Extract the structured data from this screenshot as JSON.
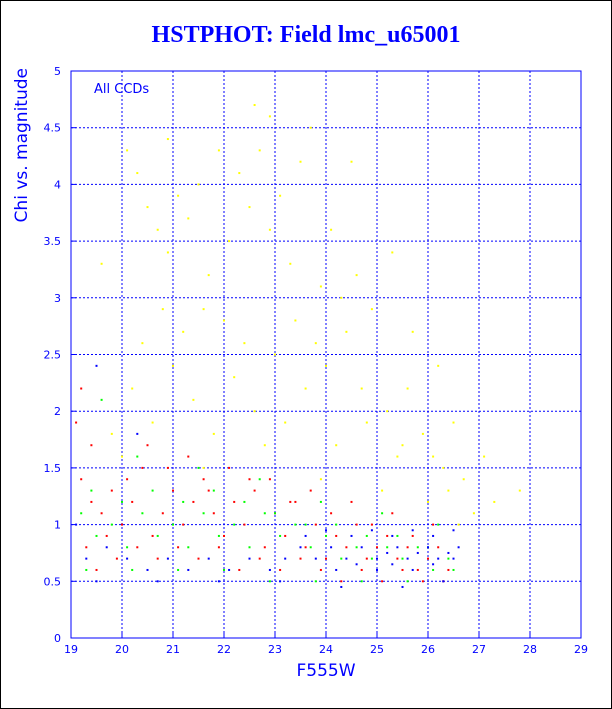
{
  "chart_data": {
    "type": "scatter",
    "title": "HSTPHOT: Field lmc_u65001",
    "xlabel": "F555W",
    "ylabel": "Chi vs. magnitude",
    "annotation": "All CCDs",
    "xlim": [
      19,
      29
    ],
    "ylim": [
      0,
      5
    ],
    "xticks": [
      "19",
      "20",
      "21",
      "22",
      "23",
      "24",
      "25",
      "26",
      "27",
      "28",
      "29"
    ],
    "yticks": [
      "0",
      "0.5",
      "1",
      "1.5",
      "2",
      "2.5",
      "3",
      "3.5",
      "4",
      "4.5",
      "5"
    ],
    "grid": true,
    "colors": {
      "text": "#0000ff",
      "grid": "#0000ff",
      "axes": "#0000ff"
    },
    "series": [
      {
        "color": "#ffff00",
        "points": [
          [
            19.6,
            3.3
          ],
          [
            20.1,
            4.3
          ],
          [
            20.3,
            4.1
          ],
          [
            20.5,
            3.8
          ],
          [
            20.7,
            3.6
          ],
          [
            20.9,
            3.4
          ],
          [
            21.1,
            3.9
          ],
          [
            21.3,
            3.7
          ],
          [
            21.5,
            4.0
          ],
          [
            21.7,
            3.2
          ],
          [
            21.9,
            4.3
          ],
          [
            22.1,
            3.5
          ],
          [
            22.3,
            4.1
          ],
          [
            22.5,
            3.8
          ],
          [
            22.7,
            4.3
          ],
          [
            22.9,
            3.6
          ],
          [
            23.1,
            3.9
          ],
          [
            23.3,
            3.3
          ],
          [
            23.5,
            4.2
          ],
          [
            23.7,
            4.5
          ],
          [
            23.9,
            3.1
          ],
          [
            24.1,
            3.6
          ],
          [
            24.3,
            3.0
          ],
          [
            24.6,
            3.2
          ],
          [
            24.9,
            2.9
          ],
          [
            25.3,
            3.4
          ],
          [
            25.7,
            2.7
          ],
          [
            26.2,
            2.4
          ],
          [
            22.0,
            2.8
          ],
          [
            22.4,
            2.6
          ],
          [
            21.6,
            2.9
          ],
          [
            23.4,
            2.8
          ],
          [
            20.4,
            2.6
          ],
          [
            20.8,
            2.9
          ],
          [
            21.2,
            2.7
          ],
          [
            23.8,
            2.6
          ],
          [
            24.4,
            2.7
          ],
          [
            25.6,
            2.2
          ],
          [
            26.5,
            1.9
          ],
          [
            27.1,
            1.6
          ],
          [
            27.8,
            1.3
          ],
          [
            21.0,
            2.4
          ],
          [
            22.2,
            2.3
          ],
          [
            23.0,
            2.5
          ],
          [
            24.0,
            2.4
          ],
          [
            24.7,
            2.2
          ],
          [
            25.2,
            2.0
          ],
          [
            25.9,
            1.8
          ],
          [
            26.3,
            1.5
          ],
          [
            20.2,
            2.2
          ],
          [
            21.4,
            2.1
          ],
          [
            22.6,
            2.0
          ],
          [
            23.6,
            2.2
          ],
          [
            24.8,
            1.9
          ],
          [
            25.5,
            1.7
          ],
          [
            26.1,
            1.6
          ],
          [
            26.7,
            1.4
          ],
          [
            27.3,
            1.2
          ],
          [
            20.6,
            1.9
          ],
          [
            21.8,
            1.8
          ],
          [
            22.8,
            1.7
          ],
          [
            23.2,
            1.9
          ],
          [
            24.2,
            1.7
          ],
          [
            25.4,
            1.6
          ],
          [
            26.4,
            1.3
          ],
          [
            26.9,
            1.1
          ],
          [
            19.8,
            1.8
          ],
          [
            20.0,
            1.6
          ],
          [
            21.6,
            1.5
          ],
          [
            23.9,
            1.4
          ],
          [
            25.1,
            1.3
          ],
          [
            26.0,
            1.2
          ],
          [
            26.6,
            1.0
          ],
          [
            22.9,
            4.6
          ],
          [
            24.5,
            4.2
          ],
          [
            20.9,
            4.4
          ],
          [
            22.6,
            4.7
          ]
        ]
      },
      {
        "color": "#ff0000",
        "points": [
          [
            19.1,
            1.9
          ],
          [
            19.2,
            1.4
          ],
          [
            19.4,
            1.2
          ],
          [
            19.6,
            1.1
          ],
          [
            19.8,
            1.3
          ],
          [
            20.0,
            1.0
          ],
          [
            20.2,
            1.2
          ],
          [
            20.4,
            1.5
          ],
          [
            20.6,
            0.9
          ],
          [
            20.8,
            1.1
          ],
          [
            21.0,
            1.3
          ],
          [
            21.2,
            1.0
          ],
          [
            21.4,
            1.2
          ],
          [
            21.6,
            1.4
          ],
          [
            21.8,
            1.1
          ],
          [
            22.0,
            0.9
          ],
          [
            22.2,
            1.2
          ],
          [
            22.4,
            1.0
          ],
          [
            22.6,
            1.3
          ],
          [
            22.8,
            0.8
          ],
          [
            23.0,
            1.1
          ],
          [
            23.2,
            0.9
          ],
          [
            23.4,
            1.2
          ],
          [
            23.6,
            0.8
          ],
          [
            23.8,
            1.0
          ],
          [
            24.0,
            0.7
          ],
          [
            24.2,
            0.9
          ],
          [
            24.4,
            0.8
          ],
          [
            24.6,
            1.0
          ],
          [
            24.8,
            0.7
          ],
          [
            25.0,
            0.8
          ],
          [
            25.2,
            0.9
          ],
          [
            25.4,
            0.7
          ],
          [
            25.6,
            0.8
          ],
          [
            25.8,
            0.6
          ],
          [
            26.0,
            0.7
          ],
          [
            26.2,
            0.8
          ],
          [
            26.4,
            0.6
          ],
          [
            19.3,
            0.8
          ],
          [
            19.5,
            0.6
          ],
          [
            19.7,
            0.9
          ],
          [
            19.9,
            0.7
          ],
          [
            20.3,
            0.8
          ],
          [
            20.7,
            0.7
          ],
          [
            21.1,
            0.8
          ],
          [
            21.5,
            0.7
          ],
          [
            21.9,
            0.8
          ],
          [
            22.3,
            0.6
          ],
          [
            22.7,
            0.7
          ],
          [
            23.1,
            0.6
          ],
          [
            23.5,
            0.7
          ],
          [
            23.9,
            0.6
          ],
          [
            24.3,
            0.5
          ],
          [
            24.7,
            0.6
          ],
          [
            25.1,
            0.5
          ],
          [
            25.5,
            0.6
          ],
          [
            25.9,
            0.5
          ],
          [
            26.3,
            0.5
          ],
          [
            20.5,
            1.7
          ],
          [
            21.3,
            1.6
          ],
          [
            22.1,
            1.5
          ],
          [
            22.9,
            1.4
          ],
          [
            23.7,
            1.3
          ],
          [
            24.5,
            1.2
          ],
          [
            25.3,
            1.1
          ],
          [
            26.1,
            1.0
          ],
          [
            20.1,
            1.4
          ],
          [
            21.7,
            1.3
          ],
          [
            23.3,
            1.2
          ],
          [
            24.9,
            1.0
          ],
          [
            19.2,
            2.2
          ],
          [
            19.4,
            1.7
          ],
          [
            20.9,
            1.5
          ],
          [
            22.5,
            1.4
          ],
          [
            24.1,
            1.1
          ],
          [
            25.7,
            0.9
          ]
        ]
      },
      {
        "color": "#00ff00",
        "points": [
          [
            19.2,
            1.1
          ],
          [
            19.5,
            0.9
          ],
          [
            19.8,
            1.0
          ],
          [
            20.1,
            0.8
          ],
          [
            20.4,
            1.1
          ],
          [
            20.7,
            0.9
          ],
          [
            21.0,
            1.0
          ],
          [
            21.3,
            0.8
          ],
          [
            21.6,
            1.1
          ],
          [
            21.9,
            0.9
          ],
          [
            22.2,
            1.0
          ],
          [
            22.5,
            0.8
          ],
          [
            22.8,
            1.1
          ],
          [
            23.1,
            0.9
          ],
          [
            23.4,
            1.0
          ],
          [
            23.7,
            0.8
          ],
          [
            24.0,
            0.9
          ],
          [
            24.3,
            0.7
          ],
          [
            24.6,
            0.8
          ],
          [
            24.9,
            0.7
          ],
          [
            25.2,
            0.8
          ],
          [
            25.5,
            0.7
          ],
          [
            25.8,
            0.8
          ],
          [
            26.1,
            0.6
          ],
          [
            26.4,
            0.7
          ],
          [
            19.4,
            1.3
          ],
          [
            20.0,
            1.2
          ],
          [
            20.6,
            1.3
          ],
          [
            21.2,
            1.2
          ],
          [
            21.8,
            1.3
          ],
          [
            22.4,
            1.2
          ],
          [
            23.0,
            1.1
          ],
          [
            23.6,
            1.0
          ],
          [
            24.2,
            1.0
          ],
          [
            24.8,
            0.9
          ],
          [
            25.4,
            0.9
          ],
          [
            26.0,
            0.8
          ],
          [
            19.6,
            2.1
          ],
          [
            20.3,
            1.6
          ],
          [
            21.5,
            1.5
          ],
          [
            22.7,
            1.4
          ],
          [
            23.9,
            1.2
          ],
          [
            25.1,
            1.1
          ],
          [
            26.2,
            1.0
          ],
          [
            19.3,
            0.6
          ],
          [
            20.2,
            0.6
          ],
          [
            21.1,
            0.6
          ],
          [
            22.0,
            0.6
          ],
          [
            22.9,
            0.5
          ],
          [
            23.8,
            0.5
          ],
          [
            24.7,
            0.5
          ],
          [
            25.6,
            0.5
          ],
          [
            26.5,
            0.6
          ]
        ]
      },
      {
        "color": "#0000ff",
        "points": [
          [
            19.3,
            0.7
          ],
          [
            19.7,
            0.8
          ],
          [
            20.1,
            0.7
          ],
          [
            20.5,
            0.6
          ],
          [
            20.9,
            0.7
          ],
          [
            21.3,
            0.6
          ],
          [
            21.7,
            0.7
          ],
          [
            22.1,
            0.6
          ],
          [
            22.5,
            0.7
          ],
          [
            22.9,
            0.6
          ],
          [
            23.2,
            0.7
          ],
          [
            23.5,
            0.8
          ],
          [
            23.8,
            0.7
          ],
          [
            24.1,
            0.8
          ],
          [
            24.4,
            0.7
          ],
          [
            24.7,
            0.8
          ],
          [
            25.0,
            0.7
          ],
          [
            25.2,
            0.75
          ],
          [
            25.4,
            0.8
          ],
          [
            25.6,
            0.7
          ],
          [
            25.8,
            0.75
          ],
          [
            26.0,
            0.8
          ],
          [
            26.2,
            0.7
          ],
          [
            26.4,
            0.75
          ],
          [
            26.6,
            0.8
          ],
          [
            24.2,
            0.6
          ],
          [
            24.6,
            0.65
          ],
          [
            25.0,
            0.6
          ],
          [
            25.3,
            0.65
          ],
          [
            25.7,
            0.6
          ],
          [
            26.1,
            0.65
          ],
          [
            26.5,
            0.7
          ],
          [
            23.6,
            0.9
          ],
          [
            24.0,
            0.95
          ],
          [
            24.5,
            0.9
          ],
          [
            24.9,
            0.95
          ],
          [
            25.3,
            0.9
          ],
          [
            25.7,
            0.95
          ],
          [
            26.1,
            0.9
          ],
          [
            26.5,
            0.95
          ],
          [
            19.1,
            1.0
          ],
          [
            19.5,
            0.5
          ],
          [
            20.7,
            0.5
          ],
          [
            21.9,
            0.5
          ],
          [
            23.1,
            0.5
          ],
          [
            24.3,
            0.45
          ],
          [
            25.5,
            0.45
          ],
          [
            26.3,
            0.5
          ],
          [
            19.5,
            2.4
          ],
          [
            20.3,
            1.8
          ]
        ]
      }
    ],
    "summary_text": "Point cloud concentrated near chi 0.6-1.0 between F555W 19 and 26.6, with scatter up to chi 4.7"
  }
}
